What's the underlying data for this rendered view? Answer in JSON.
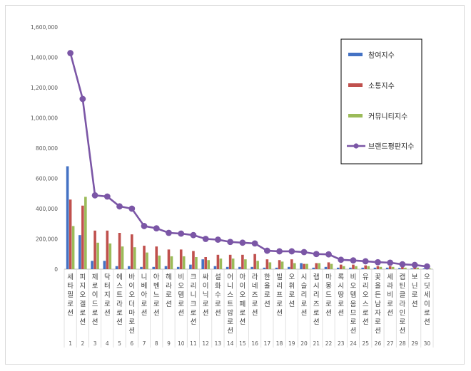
{
  "chart_data": {
    "type": "bar",
    "title": "",
    "xlabel": "",
    "ylabel": "",
    "ylim": [
      0,
      1600000
    ],
    "y_ticks": [
      "0",
      "200,000",
      "400,000",
      "600,000",
      "800,000",
      "1,000,000",
      "1,200,000",
      "1,400,000",
      "1,600,000"
    ],
    "grid": false,
    "legend_position": "top-right",
    "categories": [
      "세타필로션",
      "피지오겔로션",
      "제로이드로션",
      "닥터지로션",
      "에스트라로션",
      "바이오더마로션",
      "니베아로션",
      "아벤느로션",
      "헤라로션",
      "비오템로션",
      "크리니크로션",
      "싸이닉로션",
      "설화수로션",
      "어니스트맘로션",
      "아이오페로션",
      "라네즈로션",
      "한율로션",
      "빌리프로션",
      "오휘로션",
      "시슬리로션",
      "랩시리즈로션",
      "마몽드로션",
      "록시땅로션",
      "비오템옴므로션",
      "유리오스로션",
      "꽃을든남자로션",
      "세라비로션",
      "캡틴클라인로션",
      "보닌로션",
      "오딧세이로션"
    ],
    "ranks": [
      "1",
      "2",
      "3",
      "4",
      "5",
      "6",
      "7",
      "8",
      "9",
      "10",
      "11",
      "12",
      "13",
      "14",
      "15",
      "16",
      "17",
      "18",
      "19",
      "20",
      "21",
      "22",
      "23",
      "24",
      "25",
      "26",
      "27",
      "28",
      "29",
      "30"
    ],
    "series": [
      {
        "name": "참여지수",
        "kind": "bar",
        "color": "#4472c4",
        "values": [
          680000,
          225000,
          55000,
          55000,
          20000,
          20000,
          15000,
          15000,
          20000,
          15000,
          30000,
          65000,
          20000,
          15000,
          15000,
          15000,
          10000,
          10000,
          15000,
          40000,
          10000,
          15000,
          10000,
          10000,
          10000,
          10000,
          10000,
          8000,
          5000,
          5000
        ]
      },
      {
        "name": "소통지수",
        "kind": "bar",
        "color": "#c0504d",
        "values": [
          460000,
          420000,
          255000,
          255000,
          240000,
          230000,
          155000,
          150000,
          130000,
          130000,
          120000,
          80000,
          95000,
          95000,
          95000,
          100000,
          65000,
          60000,
          65000,
          35000,
          40000,
          45000,
          30000,
          30000,
          25000,
          20000,
          20000,
          15000,
          15000,
          10000
        ]
      },
      {
        "name": "커뮤니티지수",
        "kind": "bar",
        "color": "#9bbb59",
        "values": [
          285000,
          478000,
          175000,
          170000,
          150000,
          145000,
          110000,
          90000,
          85000,
          85000,
          80000,
          60000,
          70000,
          70000,
          65000,
          55000,
          45000,
          50000,
          40000,
          35000,
          40000,
          35000,
          20000,
          20000,
          20000,
          15000,
          15000,
          10000,
          10000,
          5000
        ]
      },
      {
        "name": "브랜드평판지수",
        "kind": "line",
        "color": "#7b56a6",
        "values": [
          1428000,
          1125000,
          488000,
          480000,
          415000,
          400000,
          285000,
          270000,
          240000,
          235000,
          225000,
          200000,
          195000,
          180000,
          175000,
          170000,
          122000,
          118000,
          118000,
          113000,
          100000,
          98000,
          62000,
          58000,
          52000,
          46000,
          43000,
          32000,
          28000,
          18000
        ]
      }
    ]
  }
}
